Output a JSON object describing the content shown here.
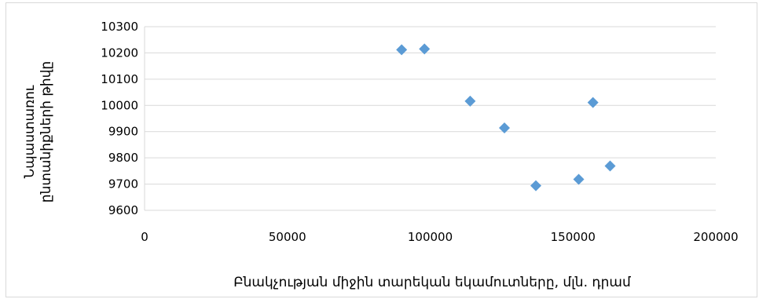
{
  "chart_data": {
    "type": "scatter",
    "title": "",
    "xlabel": "Բնակչության միջին տարեկան եկամուտները, մլն. դրամ",
    "ylabel_lines": [
      "Նպաստառու",
      "ընտանիքների թիվը"
    ],
    "xlim": [
      0,
      200000
    ],
    "ylim": [
      9600,
      10300
    ],
    "x_ticks": [
      0,
      50000,
      100000,
      150000,
      200000
    ],
    "y_ticks": [
      9600,
      9700,
      9800,
      9900,
      10000,
      10100,
      10200,
      10300
    ],
    "x_tick_labels": [
      "0",
      "50000",
      "100000",
      "150000",
      "200000"
    ],
    "y_tick_labels": [
      "9600",
      "9700",
      "9800",
      "9900",
      "10000",
      "10100",
      "10200",
      "10300"
    ],
    "grid": "horizontal",
    "legend": "none",
    "marker": "diamond",
    "color": "#5b9bd5",
    "points": [
      {
        "x": 90000,
        "y": 10212
      },
      {
        "x": 98000,
        "y": 10215
      },
      {
        "x": 114000,
        "y": 10016
      },
      {
        "x": 126000,
        "y": 9914
      },
      {
        "x": 137000,
        "y": 9694
      },
      {
        "x": 152000,
        "y": 9718
      },
      {
        "x": 157000,
        "y": 10011
      },
      {
        "x": 163000,
        "y": 9769
      }
    ]
  }
}
